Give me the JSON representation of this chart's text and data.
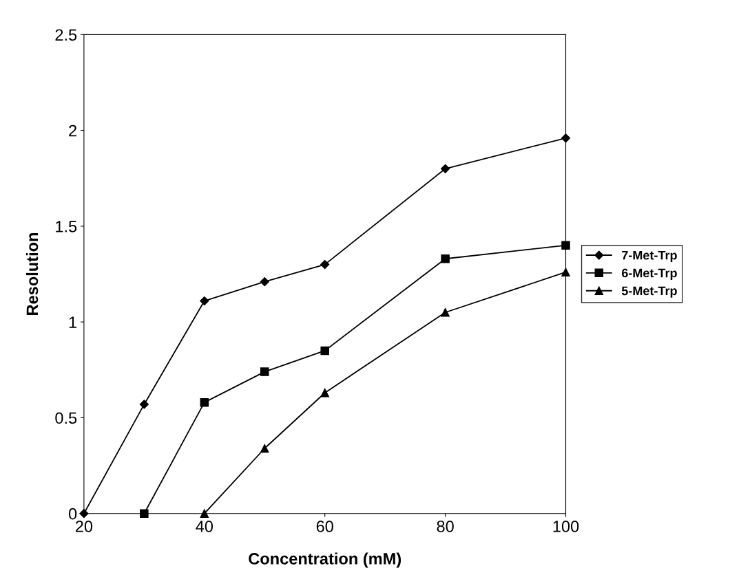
{
  "chart_data": {
    "type": "line",
    "xlabel": "Concentration (mM)",
    "ylabel": "Resolution",
    "x": [
      20,
      30,
      40,
      50,
      60,
      80,
      100
    ],
    "series": [
      {
        "name": "7-Met-Trp",
        "color": "#000000",
        "marker": "diamond",
        "values": [
          0,
          0.57,
          1.11,
          1.21,
          1.3,
          1.8,
          1.96
        ]
      },
      {
        "name": "6-Met-Trp",
        "color": "#000000",
        "marker": "square",
        "values": [
          null,
          0,
          0.58,
          0.74,
          0.85,
          1.33,
          1.4
        ]
      },
      {
        "name": "5-Met-Trp",
        "color": "#000000",
        "marker": "triangle",
        "values": [
          null,
          null,
          0,
          0.34,
          0.63,
          1.05,
          1.26
        ]
      }
    ],
    "xlim": [
      20,
      100
    ],
    "xticks": [
      20,
      40,
      60,
      80,
      100
    ],
    "ylim": [
      0,
      2.5
    ],
    "yticks": [
      0,
      0.5,
      1,
      1.5,
      2,
      2.5
    ],
    "grid": false,
    "legend": "right",
    "line_style": "solid"
  }
}
